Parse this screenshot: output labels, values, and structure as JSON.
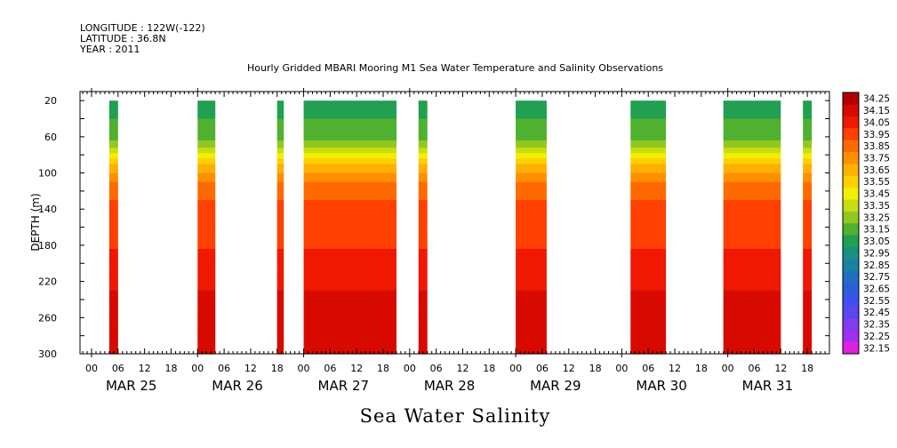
{
  "header": {
    "longitude": "LONGITUDE : 122W(-122)",
    "latitude": "LATITUDE : 36.8N",
    "year": "YEAR : 2011"
  },
  "chart_data": {
    "type": "heatmap",
    "title": "Hourly Gridded MBARI Mooring M1 Sea Water Temperature and Salinity Observations",
    "variable_title": "Sea Water Salinity",
    "ylabel": "DEPTH (m)",
    "y_axis": {
      "inverted": true,
      "ylim": [
        10,
        300
      ],
      "ticks": [
        20,
        60,
        100,
        140,
        180,
        220,
        260,
        300
      ]
    },
    "x_axis": {
      "hour_ticks": [
        "00",
        "06",
        "12",
        "18",
        "00",
        "06",
        "12",
        "18",
        "00",
        "06",
        "12",
        "18",
        "00",
        "06",
        "12",
        "18",
        "00",
        "06",
        "12",
        "18",
        "00",
        "06",
        "12",
        "18",
        "00",
        "06",
        "12",
        "18"
      ],
      "days": [
        "MAR 25",
        "MAR 26",
        "MAR 27",
        "MAR 28",
        "MAR 29",
        "MAR 30",
        "MAR 31"
      ]
    },
    "colorbar": {
      "levels": [
        "32.15",
        "32.25",
        "32.35",
        "32.45",
        "32.55",
        "32.65",
        "32.75",
        "32.85",
        "32.95",
        "33.05",
        "33.15",
        "33.25",
        "33.35",
        "33.45",
        "33.55",
        "33.65",
        "33.75",
        "33.85",
        "33.95",
        "34.05",
        "34.15",
        "34.25"
      ],
      "colors": [
        "#e020e0",
        "#a030ee",
        "#7f3cf0",
        "#5b46f0",
        "#3f50f0",
        "#2860d8",
        "#1f70c0",
        "#1a82a0",
        "#1a9080",
        "#20a050",
        "#50b030",
        "#90c820",
        "#c8dc10",
        "#f0f000",
        "#ffd000",
        "#ffb000",
        "#ff9000",
        "#ff6a00",
        "#ff4000",
        "#f01800",
        "#d80a00",
        "#b00000"
      ]
    },
    "data_segments_hours": [
      {
        "start": 4,
        "end": 6
      },
      {
        "start": 24,
        "end": 28
      },
      {
        "start": 42,
        "end": 43.5
      },
      {
        "start": 48,
        "end": 69
      },
      {
        "start": 74,
        "end": 76
      },
      {
        "start": 96,
        "end": 103
      },
      {
        "start": 122,
        "end": 130
      },
      {
        "start": 143,
        "end": 156
      },
      {
        "start": 161,
        "end": 163
      }
    ],
    "profile": {
      "depth": [
        20,
        40,
        60,
        70,
        80,
        90,
        100,
        110,
        120,
        130,
        140,
        150,
        160,
        180,
        200,
        220,
        240,
        260,
        280,
        300
      ],
      "salinity": [
        33.12,
        33.15,
        33.2,
        33.32,
        33.5,
        33.65,
        33.75,
        33.85,
        33.9,
        33.95,
        33.98,
        34.0,
        34.02,
        34.04,
        34.08,
        34.12,
        34.18,
        34.22,
        34.2,
        34.15
      ]
    }
  }
}
